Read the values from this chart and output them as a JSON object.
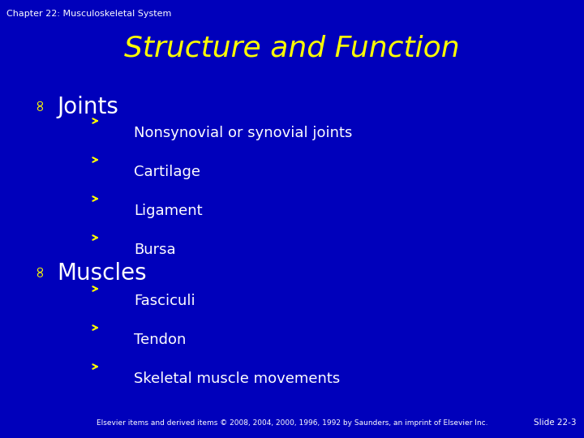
{
  "background_color": "#0000BB",
  "chapter_text": "Chapter 22: Musculoskeletal System",
  "chapter_color": "#FFFFFF",
  "chapter_fontsize": 8,
  "title": "Structure and Function",
  "title_color": "#FFFF00",
  "title_fontsize": 26,
  "section1_header": "Joints",
  "section1_header_color": "#FFFFFF",
  "section1_header_fontsize": 20,
  "section1_items": [
    "Nonsynovial or synovial joints",
    "Cartilage",
    "Ligament",
    "Bursa"
  ],
  "section2_header": "Muscles",
  "section2_header_color": "#FFFFFF",
  "section2_header_fontsize": 20,
  "section2_items": [
    "Fasciculi",
    "Tendon",
    "Skeletal muscle movements"
  ],
  "item_color": "#FFFFFF",
  "item_fontsize": 13,
  "bullet_color": "#FFFF00",
  "arrow_color": "#FFFF00",
  "footer_text": "Elsevier items and derived items © 2008, 2004, 2000, 1996, 1992 by Saunders, an imprint of Elsevier Inc.",
  "footer_color": "#FFFFFF",
  "footer_fontsize": 6.5,
  "slide_num_text": "Slide 22-3",
  "slide_num_color": "#FFFFFF",
  "slide_num_fontsize": 7.5
}
